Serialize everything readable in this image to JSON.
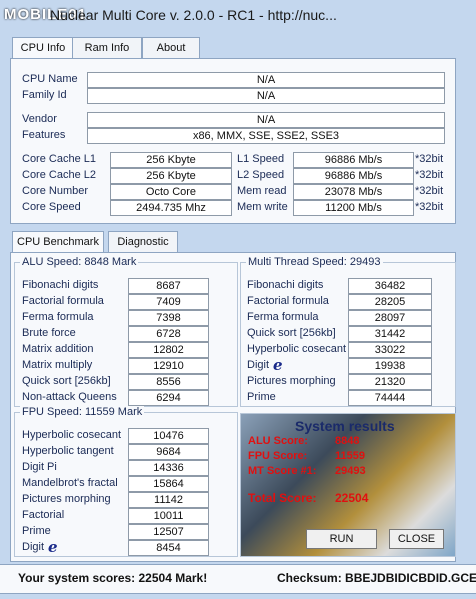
{
  "title_bar": {
    "watermark": "MOBILE01",
    "title": "Nuclear Multi Core   v. 2.0.0   -   RC1   -   http://nuc..."
  },
  "tabs": [
    "CPU Info",
    "Ram Info",
    "About"
  ],
  "cpu_info": {
    "fields": [
      [
        "CPU Name",
        "N/A"
      ],
      [
        "Family Id",
        "N/A"
      ],
      [
        "Vendor",
        "N/A"
      ],
      [
        "Features",
        "x86, MMX, SSE, SSE2, SSE3"
      ]
    ],
    "left": [
      [
        "Core Cache L1",
        "256 Kbyte"
      ],
      [
        "Core Cache L2",
        "256 Kbyte"
      ],
      [
        "Core Number",
        "Octo Core"
      ],
      [
        "Core Speed",
        "2494.735 Mhz"
      ]
    ],
    "right": [
      [
        "L1 Speed",
        "96886 Mb/s",
        "*32bit"
      ],
      [
        "L2 Speed",
        "96886 Mb/s",
        "*32bit"
      ],
      [
        "Mem read",
        "23078 Mb/s",
        "*32bit"
      ],
      [
        "Mem write",
        "11200 Mb/s",
        "*32bit"
      ]
    ]
  },
  "bench_tabs": [
    "CPU Benchmark",
    "Diagnostic"
  ],
  "alu": {
    "title": "ALU Speed: 8848 Mark",
    "items": [
      [
        "Fibonachi digits",
        "8687"
      ],
      [
        "Factorial formula",
        "7409"
      ],
      [
        "Ferma formula",
        "7398"
      ],
      [
        "Brute force",
        "6728"
      ],
      [
        "Matrix addition",
        "12802"
      ],
      [
        "Matrix multiply",
        "12910"
      ],
      [
        "Quick sort [256kb]",
        "8556"
      ],
      [
        "Non-attack Queens",
        "6294"
      ]
    ]
  },
  "multi": {
    "title": "Multi Thread Speed: 29493",
    "items": [
      [
        "Fibonachi digits",
        "36482"
      ],
      [
        "Factorial formula",
        "28205"
      ],
      [
        "Ferma formula",
        "28097"
      ],
      [
        "Quick sort [256kb]",
        "31442"
      ],
      [
        "Hyperbolic cosecant",
        "33022"
      ],
      [
        "Digit",
        "19938"
      ],
      [
        "Pictures morphing",
        "21320"
      ],
      [
        "Prime",
        "74444"
      ]
    ]
  },
  "fpu": {
    "title": "FPU Speed: 11559 Mark",
    "items": [
      [
        "Hyperbolic cosecant",
        "10476"
      ],
      [
        "Hyperbolic tangent",
        "9684"
      ],
      [
        "Digit Pi",
        "14336"
      ],
      [
        "Mandelbrot's fractal",
        "15864"
      ],
      [
        "Pictures morphing",
        "11142"
      ],
      [
        "Factorial",
        "10011"
      ],
      [
        "Prime",
        "12507"
      ],
      [
        "Digit",
        "8454"
      ]
    ]
  },
  "digit_icon": "e",
  "results": {
    "title": "System results",
    "scores": [
      [
        "ALU Score:",
        "8848"
      ],
      [
        "FPU Score:",
        "11559"
      ],
      [
        "MT Score #1:",
        "29493"
      ]
    ],
    "total": [
      "Total Score:",
      "22504"
    ],
    "buttons": [
      "RUN",
      "CLOSE"
    ]
  },
  "footer": {
    "scores": "Your system scores: 22504 Mark!",
    "checksum": "Checksum: BBEJDBIDICBDID.GCE"
  }
}
